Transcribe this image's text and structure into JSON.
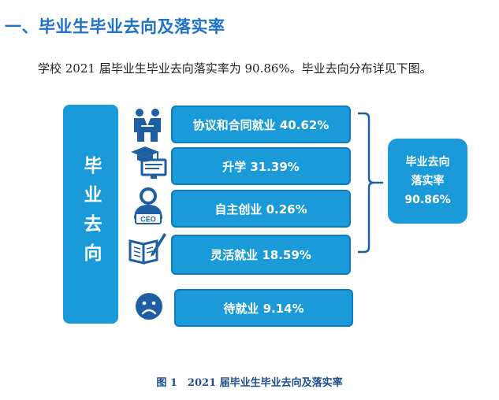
{
  "heading": "一、毕业生毕业去向及落实率",
  "intro": "学校 2021 届毕业生毕业去向落实率为 90.86%。毕业去向分布详见下图。",
  "diagram": {
    "left_label": "毕业去向",
    "items": [
      {
        "label": "协议和合同就业 40.62%",
        "icon": "handshake-people-icon"
      },
      {
        "label": "升学 31.39%",
        "icon": "graduation-cap-monitor-icon"
      },
      {
        "label": "自主创业 0.26%",
        "icon": "ceo-person-icon"
      },
      {
        "label": "灵活就业 18.59%",
        "icon": "book-pen-icon"
      },
      {
        "label": "待就业 9.14%",
        "icon": "sad-face-icon"
      }
    ],
    "result": {
      "line1": "毕业去向",
      "line2": "落实率",
      "value": "90.86%"
    },
    "colors": {
      "box": "#1a9ad8",
      "border": "#0e7bbf",
      "icon": "#1e5fa3"
    }
  },
  "caption": "图 1　2021 届毕业生毕业去向及落实率"
}
